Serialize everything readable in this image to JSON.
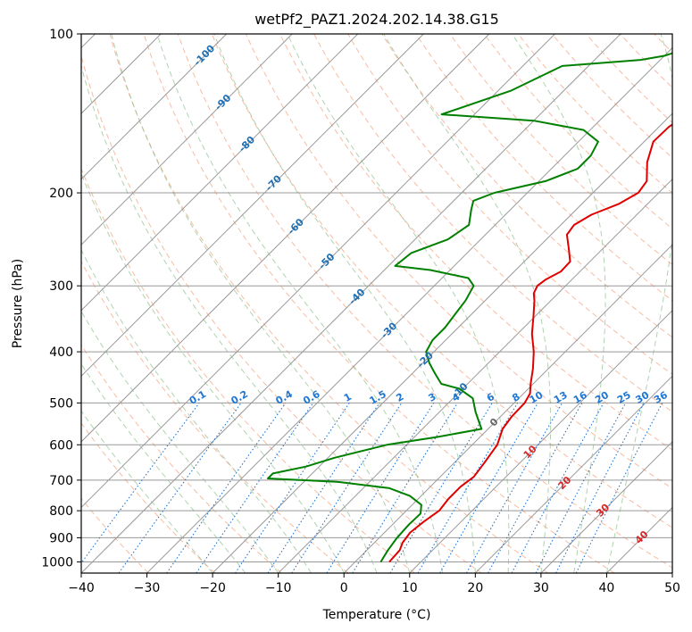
{
  "chart_data": {
    "type": "line",
    "chart_kind": "skew-t log-p diagram",
    "title": "wetPf2_PAZ1.2024.202.14.38.G15",
    "xlabel": "Temperature (°C)",
    "ylabel": "Pressure (hPa)",
    "xlim": [
      -40,
      50
    ],
    "ylim": [
      1050,
      100
    ],
    "y_scale": "log",
    "grid": true,
    "x_ticks": [
      "−40",
      "−30",
      "−20",
      "−10",
      "0",
      "10",
      "20",
      "30",
      "40",
      "50"
    ],
    "x_tick_values": [
      -40,
      -30,
      -20,
      -10,
      0,
      10,
      20,
      30,
      40,
      50
    ],
    "y_ticks": [
      "100",
      "200",
      "300",
      "400",
      "500",
      "600",
      "700",
      "800",
      "900",
      "1000"
    ],
    "y_tick_values": [
      100,
      200,
      300,
      400,
      500,
      600,
      700,
      800,
      900,
      1000
    ],
    "colors": {
      "temperature": "#e00000",
      "dewpoint": "#008000",
      "isotherm": "#999999",
      "dry_adiabat": "#f4a582",
      "moist_adiabat": "#8fbf8f",
      "mixing_ratio": "#1f77d4",
      "label_blue": "#1f6fb4",
      "label_red": "#d62728"
    },
    "series": [
      {
        "role": "temperature",
        "color": "#e00000",
        "points": [
          {
            "p": 1000,
            "t": 5.2
          },
          {
            "p": 950,
            "t": 5.0
          },
          {
            "p": 920,
            "t": 4.3
          },
          {
            "p": 880,
            "t": 3.9
          },
          {
            "p": 840,
            "t": 4.3
          },
          {
            "p": 800,
            "t": 5.0
          },
          {
            "p": 760,
            "t": 4.6
          },
          {
            "p": 720,
            "t": 4.6
          },
          {
            "p": 690,
            "t": 5.1
          },
          {
            "p": 650,
            "t": 4.6
          },
          {
            "p": 600,
            "t": 3.8
          },
          {
            "p": 560,
            "t": 2.2
          },
          {
            "p": 530,
            "t": 1.7
          },
          {
            "p": 500,
            "t": 1.6
          },
          {
            "p": 480,
            "t": 1.0
          },
          {
            "p": 460,
            "t": -0.4
          },
          {
            "p": 430,
            "t": -2.4
          },
          {
            "p": 400,
            "t": -4.8
          },
          {
            "p": 370,
            "t": -7.8
          },
          {
            "p": 340,
            "t": -10.5
          },
          {
            "p": 320,
            "t": -12.5
          },
          {
            "p": 310,
            "t": -13.7
          },
          {
            "p": 300,
            "t": -14.3
          },
          {
            "p": 292,
            "t": -14.0
          },
          {
            "p": 282,
            "t": -12.9
          },
          {
            "p": 270,
            "t": -13.0
          },
          {
            "p": 255,
            "t": -15.2
          },
          {
            "p": 240,
            "t": -17.6
          },
          {
            "p": 230,
            "t": -18.0
          },
          {
            "p": 220,
            "t": -16.9
          },
          {
            "p": 210,
            "t": -14.4
          },
          {
            "p": 200,
            "t": -13.1
          },
          {
            "p": 190,
            "t": -13.6
          },
          {
            "p": 175,
            "t": -16.4
          },
          {
            "p": 160,
            "t": -18.6
          },
          {
            "p": 150,
            "t": -18.5
          },
          {
            "p": 140,
            "t": -17.3
          },
          {
            "p": 130,
            "t": -16.7
          },
          {
            "p": 120,
            "t": -18.0
          },
          {
            "p": 110,
            "t": -21.9
          },
          {
            "p": 100,
            "t": -27.3
          }
        ]
      },
      {
        "role": "dewpoint",
        "color": "#008000",
        "points": [
          {
            "p": 1000,
            "t": 3.9
          },
          {
            "p": 950,
            "t": 3.2
          },
          {
            "p": 900,
            "t": 2.7
          },
          {
            "p": 850,
            "t": 2.5
          },
          {
            "p": 810,
            "t": 2.6
          },
          {
            "p": 780,
            "t": 1.4
          },
          {
            "p": 750,
            "t": -1.7
          },
          {
            "p": 725,
            "t": -6.0
          },
          {
            "p": 705,
            "t": -15.0
          },
          {
            "p": 695,
            "t": -26.0
          },
          {
            "p": 680,
            "t": -26.0
          },
          {
            "p": 660,
            "t": -22.0
          },
          {
            "p": 635,
            "t": -19.0
          },
          {
            "p": 600,
            "t": -13.0
          },
          {
            "p": 580,
            "t": -6.5
          },
          {
            "p": 560,
            "t": -1.0
          },
          {
            "p": 545,
            "t": -2.3
          },
          {
            "p": 520,
            "t": -4.5
          },
          {
            "p": 490,
            "t": -7.0
          },
          {
            "p": 470,
            "t": -10.5
          },
          {
            "p": 460,
            "t": -14.0
          },
          {
            "p": 440,
            "t": -16.5
          },
          {
            "p": 420,
            "t": -19.0
          },
          {
            "p": 400,
            "t": -21.2
          },
          {
            "p": 380,
            "t": -22.0
          },
          {
            "p": 360,
            "t": -22.0
          },
          {
            "p": 340,
            "t": -22.5
          },
          {
            "p": 320,
            "t": -23.0
          },
          {
            "p": 300,
            "t": -24.0
          },
          {
            "p": 290,
            "t": -26.0
          },
          {
            "p": 280,
            "t": -33.0
          },
          {
            "p": 275,
            "t": -39.0
          },
          {
            "p": 260,
            "t": -38.5
          },
          {
            "p": 245,
            "t": -35.0
          },
          {
            "p": 230,
            "t": -34.0
          },
          {
            "p": 215,
            "t": -36.0
          },
          {
            "p": 207,
            "t": -37.0
          },
          {
            "p": 200,
            "t": -35.0
          },
          {
            "p": 190,
            "t": -29.0
          },
          {
            "p": 180,
            "t": -26.0
          },
          {
            "p": 170,
            "t": -26.0
          },
          {
            "p": 160,
            "t": -27.0
          },
          {
            "p": 152,
            "t": -31.0
          },
          {
            "p": 146,
            "t": -40.0
          },
          {
            "p": 142,
            "t": -55.0
          },
          {
            "p": 128,
            "t": -48.0
          },
          {
            "p": 115,
            "t": -44.0
          },
          {
            "p": 112,
            "t": -33.0
          },
          {
            "p": 110,
            "t": -30.0
          },
          {
            "p": 100,
            "t": -23.0
          }
        ]
      }
    ],
    "isotherm_labels": [
      {
        "text": "0",
        "t": 0,
        "p": 545,
        "color": "#666666"
      },
      {
        "text": "10",
        "t": 10,
        "p": 620,
        "color": "#d62728"
      },
      {
        "text": "20",
        "t": 20,
        "p": 710,
        "color": "#d62728"
      },
      {
        "text": "30",
        "t": 30,
        "p": 800,
        "color": "#d62728"
      },
      {
        "text": "40",
        "t": 40,
        "p": 900,
        "color": "#d62728"
      },
      {
        "text": "-10",
        "t": -10,
        "p": 475,
        "color": "#1f6fb4"
      },
      {
        "text": "-20",
        "t": -20,
        "p": 415,
        "color": "#1f6fb4"
      },
      {
        "text": "-30",
        "t": -30,
        "p": 365,
        "color": "#1f6fb4"
      },
      {
        "text": "-40",
        "t": -40,
        "p": 315,
        "color": "#1f6fb4"
      },
      {
        "text": "-50",
        "t": -50,
        "p": 270,
        "color": "#1f6fb4"
      },
      {
        "text": "-60",
        "t": -60,
        "p": 232,
        "color": "#1f6fb4"
      },
      {
        "text": "-70",
        "t": -70,
        "p": 192,
        "color": "#1f6fb4"
      },
      {
        "text": "-80",
        "t": -80,
        "p": 162,
        "color": "#1f6fb4"
      },
      {
        "text": "-90",
        "t": -90,
        "p": 135,
        "color": "#1f6fb4"
      },
      {
        "text": "-100",
        "t": -100,
        "p": 110,
        "color": "#1f6fb4"
      }
    ],
    "mixing_ratio_labels": [
      "0.1",
      "0.2",
      "0.4",
      "0.6",
      "1",
      "1.5",
      "2",
      "3",
      "4",
      "6",
      "8",
      "10",
      "13",
      "16",
      "20",
      "25",
      "30",
      "36"
    ]
  }
}
